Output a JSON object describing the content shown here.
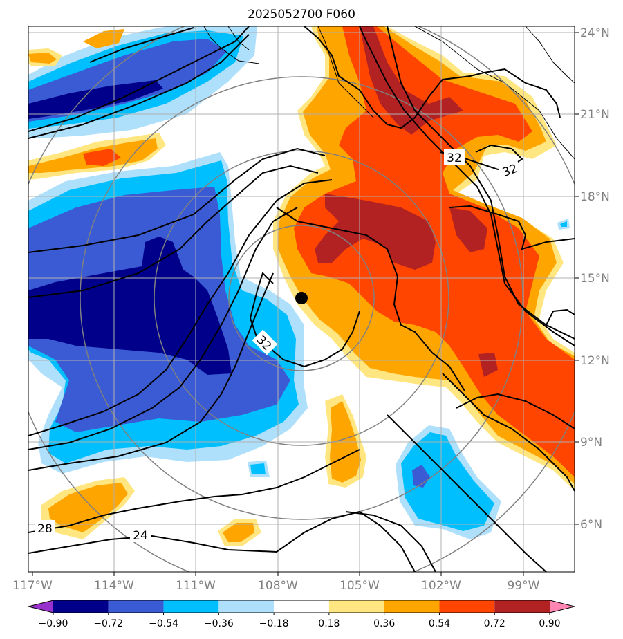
{
  "title": "2025052700 F060",
  "longitude_labels": [
    "117°W",
    "114°W",
    "111°W",
    "108°W",
    "105°W",
    "102°W",
    "99°W"
  ],
  "latitude_labels": [
    "24°N",
    "21°N",
    "18°N",
    "15°N",
    "12°N",
    "9°N",
    "6°N"
  ],
  "colorbar": {
    "tick_labels": [
      "−0.90",
      "−0.72",
      "−0.54",
      "−0.36",
      "−0.18",
      "0.18",
      "0.36",
      "0.54",
      "0.72",
      "0.90"
    ],
    "colors": [
      "#9932cc",
      "#00008b",
      "#3a5bd3",
      "#00bfff",
      "#aee0fb",
      "#ffffff",
      "#ffe680",
      "#ffa500",
      "#ff4500",
      "#b22222",
      "#ff85b3"
    ]
  },
  "contour_labels": [
    "32",
    "32",
    "32",
    "28",
    "24"
  ],
  "storm_center_marker": "black-dot"
}
